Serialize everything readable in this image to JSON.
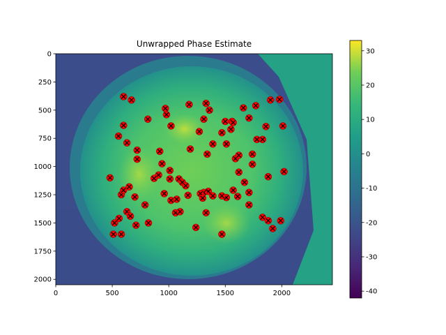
{
  "chart_data": {
    "type": "heatmap",
    "title": "Unwrapped Phase Estimate",
    "xlim": [
      0,
      2448
    ],
    "ylim": [
      2048,
      0
    ],
    "x_ticks": [
      0,
      500,
      1000,
      1500,
      2000
    ],
    "y_ticks": [
      0,
      250,
      500,
      750,
      1000,
      1250,
      1500,
      1750,
      2000
    ],
    "colorbar": {
      "range": [
        -42,
        33
      ],
      "ticks": [
        -40,
        -30,
        -20,
        -10,
        0,
        10,
        20,
        30
      ],
      "colormap": "viridis"
    },
    "marker_style": {
      "face": "#ff0000",
      "edge": "#000000",
      "symbol": "x"
    },
    "markers": [
      [
        600,
        380
      ],
      [
        670,
        410
      ],
      [
        600,
        635
      ],
      [
        555,
        730
      ],
      [
        630,
        790
      ],
      [
        720,
        855
      ],
      [
        720,
        935
      ],
      [
        815,
        580
      ],
      [
        970,
        485
      ],
      [
        980,
        540
      ],
      [
        1020,
        640
      ],
      [
        920,
        865
      ],
      [
        940,
        975
      ],
      [
        910,
        1075
      ],
      [
        870,
        1105
      ],
      [
        1010,
        1035
      ],
      [
        1010,
        1110
      ],
      [
        960,
        1240
      ],
      [
        1020,
        1300
      ],
      [
        1070,
        1290
      ],
      [
        1090,
        1110
      ],
      [
        1120,
        1140
      ],
      [
        1150,
        1170
      ],
      [
        1170,
        1255
      ],
      [
        1180,
        450
      ],
      [
        1190,
        845
      ],
      [
        1270,
        690
      ],
      [
        1310,
        580
      ],
      [
        1330,
        440
      ],
      [
        1360,
        500
      ],
      [
        1340,
        890
      ],
      [
        1390,
        800
      ],
      [
        1470,
        700
      ],
      [
        1500,
        600
      ],
      [
        1560,
        600
      ],
      [
        1550,
        670
      ],
      [
        1510,
        800
      ],
      [
        1570,
        610
      ],
      [
        1590,
        930
      ],
      [
        1620,
        900
      ],
      [
        1620,
        1050
      ],
      [
        1660,
        480
      ],
      [
        1710,
        570
      ],
      [
        1740,
        890
      ],
      [
        1740,
        980
      ],
      [
        1770,
        460
      ],
      [
        1780,
        760
      ],
      [
        1830,
        760
      ],
      [
        1860,
        645
      ],
      [
        1900,
        410
      ],
      [
        1980,
        405
      ],
      [
        2010,
        640
      ],
      [
        2020,
        1045
      ],
      [
        1670,
        1140
      ],
      [
        1710,
        1230
      ],
      [
        1570,
        1210
      ],
      [
        1610,
        1265
      ],
      [
        1510,
        1275
      ],
      [
        1470,
        1260
      ],
      [
        1390,
        1260
      ],
      [
        1350,
        1220
      ],
      [
        1310,
        1230
      ],
      [
        1280,
        1240
      ],
      [
        1300,
        1280
      ],
      [
        1330,
        1410
      ],
      [
        1240,
        1540
      ],
      [
        1470,
        1600
      ],
      [
        1710,
        1340
      ],
      [
        1830,
        1450
      ],
      [
        1880,
        1480
      ],
      [
        1920,
        1550
      ],
      [
        1990,
        1480
      ],
      [
        1880,
        1090
      ],
      [
        480,
        1100
      ],
      [
        580,
        1250
      ],
      [
        600,
        1210
      ],
      [
        650,
        1180
      ],
      [
        700,
        1270
      ],
      [
        790,
        1340
      ],
      [
        630,
        1400
      ],
      [
        660,
        1440
      ],
      [
        560,
        1460
      ],
      [
        520,
        1500
      ],
      [
        710,
        1520
      ],
      [
        820,
        1500
      ],
      [
        510,
        1600
      ],
      [
        580,
        1600
      ],
      [
        1060,
        1410
      ],
      [
        1100,
        1400
      ]
    ]
  }
}
